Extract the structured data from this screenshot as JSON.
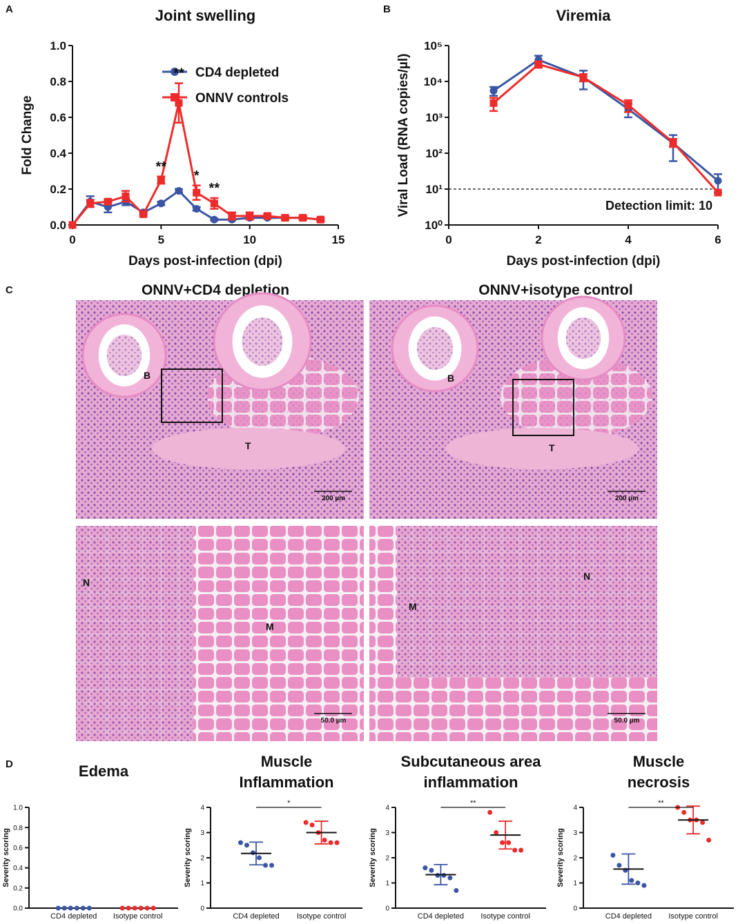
{
  "panel_labels": [
    "A",
    "B",
    "C",
    "D"
  ],
  "chart_data": [
    {
      "type": "line",
      "title": "Joint swelling",
      "xlabel": "Days post-infection (dpi)",
      "ylabel": "Fold Change",
      "x": [
        0,
        1,
        2,
        3,
        4,
        5,
        6,
        7,
        8,
        9,
        10,
        11,
        12,
        13,
        14
      ],
      "series": [
        {
          "name": "CD4 depleted",
          "color": "#3a55a4",
          "marker": "circle",
          "values": [
            0,
            0.13,
            0.1,
            0.13,
            0.07,
            0.12,
            0.19,
            0.09,
            0.03,
            0.03,
            0.04,
            0.04,
            0.04,
            0.04,
            0.03
          ],
          "errors": [
            0,
            0.03,
            0.03,
            0.02,
            0.01,
            0.01,
            0.01,
            0.01,
            0.005,
            0.005,
            0.005,
            0.005,
            0.005,
            0.005,
            0.005
          ]
        },
        {
          "name": "ONNV controls",
          "color": "#ee2b2b",
          "marker": "square",
          "values": [
            0,
            0.12,
            0.13,
            0.16,
            0.06,
            0.25,
            0.68,
            0.18,
            0.12,
            0.05,
            0.05,
            0.05,
            0.04,
            0.04,
            0.03
          ],
          "errors": [
            0,
            0.02,
            0.01,
            0.03,
            0.01,
            0.02,
            0.11,
            0.04,
            0.03,
            0.02,
            0.02,
            0.01,
            0.01,
            0.01,
            0.01
          ]
        }
      ],
      "xlim": [
        0,
        15
      ],
      "xticks": [
        0,
        5,
        10,
        15
      ],
      "ylim": [
        0,
        1
      ],
      "yticks": [
        {
          "value": 0,
          "label": "0.0"
        },
        {
          "value": 0.2,
          "label": "0.2"
        },
        {
          "value": 0.4,
          "label": "0.4"
        },
        {
          "value": 0.6,
          "label": "0.6"
        },
        {
          "value": 0.8,
          "label": "0.8"
        },
        {
          "value": 1,
          "label": "1.0"
        }
      ],
      "legend": "upper right",
      "annotations": [
        {
          "x": 5,
          "text": "**"
        },
        {
          "x": 6,
          "text": "**"
        },
        {
          "x": 7,
          "text": "*"
        },
        {
          "x": 8,
          "text": "**"
        }
      ]
    },
    {
      "type": "line",
      "title": "Viremia",
      "xlabel": "Days post-infection (dpi)",
      "ylabel": "Viral Load (RNA copies/µl)",
      "x": [
        1,
        2,
        3,
        4,
        5,
        6
      ],
      "series": [
        {
          "name": "CD4 depleted",
          "color": "#3a55a4",
          "marker": "circle",
          "values": [
            5500,
            40000,
            13000,
            1700,
            190,
            17
          ],
          "errors": [
            1500,
            12000,
            7000,
            700,
            130,
            9
          ]
        },
        {
          "name": "ONNV controls",
          "color": "#ee2b2b",
          "marker": "square",
          "values": [
            2500,
            30000,
            13000,
            2200,
            200,
            8
          ],
          "errors": [
            1000,
            6000,
            3000,
            800,
            50,
            0
          ]
        }
      ],
      "xlim": [
        0,
        6
      ],
      "xticks": [
        0,
        2,
        4,
        6
      ],
      "log_y": true,
      "ylim": [
        1,
        100000
      ],
      "yticks": [
        {
          "value": 1,
          "label": "10⁰"
        },
        {
          "value": 10,
          "label": "10¹"
        },
        {
          "value": 100,
          "label": "10²"
        },
        {
          "value": 1000,
          "label": "10³"
        },
        {
          "value": 10000,
          "label": "10⁴"
        },
        {
          "value": 100000,
          "label": "10⁵"
        }
      ],
      "threshold": {
        "value": 10,
        "label": "Detection limit: 10"
      }
    },
    {
      "type": "strip",
      "title": [
        "Edema"
      ],
      "ylabel": "Severity scoring",
      "categories": [
        "CD4 depleted",
        "Isotype control"
      ],
      "groups": [
        {
          "color": "#3a55a4",
          "values": [
            0,
            0,
            0,
            0,
            0,
            0
          ],
          "mean": 0,
          "sd": 0
        },
        {
          "color": "#ee2b2b",
          "values": [
            0,
            0,
            0,
            0,
            0,
            0
          ],
          "mean": 0,
          "sd": 0
        }
      ],
      "ylim": [
        0,
        1
      ],
      "yticks": [
        {
          "value": 0,
          "label": "0.0"
        },
        {
          "value": 0.2,
          "label": "0.2"
        },
        {
          "value": 0.4,
          "label": "0.4"
        },
        {
          "value": 0.6,
          "label": "0.6"
        },
        {
          "value": 0.8,
          "label": "0.8"
        },
        {
          "value": 1,
          "label": "1.0"
        }
      ]
    },
    {
      "type": "strip",
      "title": [
        "Muscle",
        "Inflammation"
      ],
      "ylabel": "Severity scoring",
      "categories": [
        "CD4 depleted",
        "Isotype control"
      ],
      "groups": [
        {
          "color": "#3a55a4",
          "values": [
            2.6,
            2.5,
            2.2,
            2.0,
            1.7,
            1.7
          ],
          "mean": 2.17,
          "sd": 0.45
        },
        {
          "color": "#ee2b2b",
          "values": [
            3.4,
            3.3,
            3.0,
            2.7,
            2.6,
            2.6
          ],
          "mean": 3.0,
          "sd": 0.45
        }
      ],
      "ylim": [
        0,
        4
      ],
      "yticks": [
        0,
        1,
        2,
        3,
        4
      ],
      "significance": "*"
    },
    {
      "type": "strip",
      "title": [
        "Subcutaneous area",
        "inflammation"
      ],
      "ylabel": "Severity scoring",
      "categories": [
        "CD4 depleted",
        "Isotype control"
      ],
      "groups": [
        {
          "color": "#3a55a4",
          "values": [
            1.6,
            1.5,
            1.3,
            1.3,
            1.2,
            0.7
          ],
          "mean": 1.33,
          "sd": 0.4
        },
        {
          "color": "#ee2b2b",
          "values": [
            3.8,
            3.0,
            2.6,
            2.6,
            2.3,
            2.3
          ],
          "mean": 2.9,
          "sd": 0.55
        }
      ],
      "ylim": [
        0,
        4
      ],
      "yticks": [
        0,
        1,
        2,
        3,
        4
      ],
      "significance": "**"
    },
    {
      "type": "strip",
      "title": [
        "Muscle",
        "necrosis"
      ],
      "ylabel": "Severity scoring",
      "categories": [
        "CD4 depleted",
        "Isotype control"
      ],
      "groups": [
        {
          "color": "#3a55a4",
          "values": [
            2.1,
            1.7,
            1.5,
            1.1,
            1.0,
            0.9
          ],
          "mean": 1.55,
          "sd": 0.6
        },
        {
          "color": "#ee2b2b",
          "values": [
            4.0,
            3.8,
            3.5,
            3.5,
            3.4,
            2.7
          ],
          "mean": 3.5,
          "sd": 0.55
        }
      ],
      "ylim": [
        0,
        4
      ],
      "yticks": [
        0,
        1,
        2,
        3,
        4
      ],
      "significance": "**"
    }
  ],
  "histology": {
    "titles": [
      "ONNV+CD4 depletion",
      "ONNV+isotype control"
    ],
    "panels": [
      {
        "labels": [
          "B",
          "T"
        ],
        "scale_bar": "200 µm"
      },
      {
        "labels": [
          "B",
          "T"
        ],
        "scale_bar": "200 µm"
      },
      {
        "labels": [
          "N",
          "M"
        ],
        "scale_bar": "50.0 µm"
      },
      {
        "labels": [
          "M",
          "N"
        ],
        "scale_bar": "50.0 µm"
      }
    ]
  }
}
